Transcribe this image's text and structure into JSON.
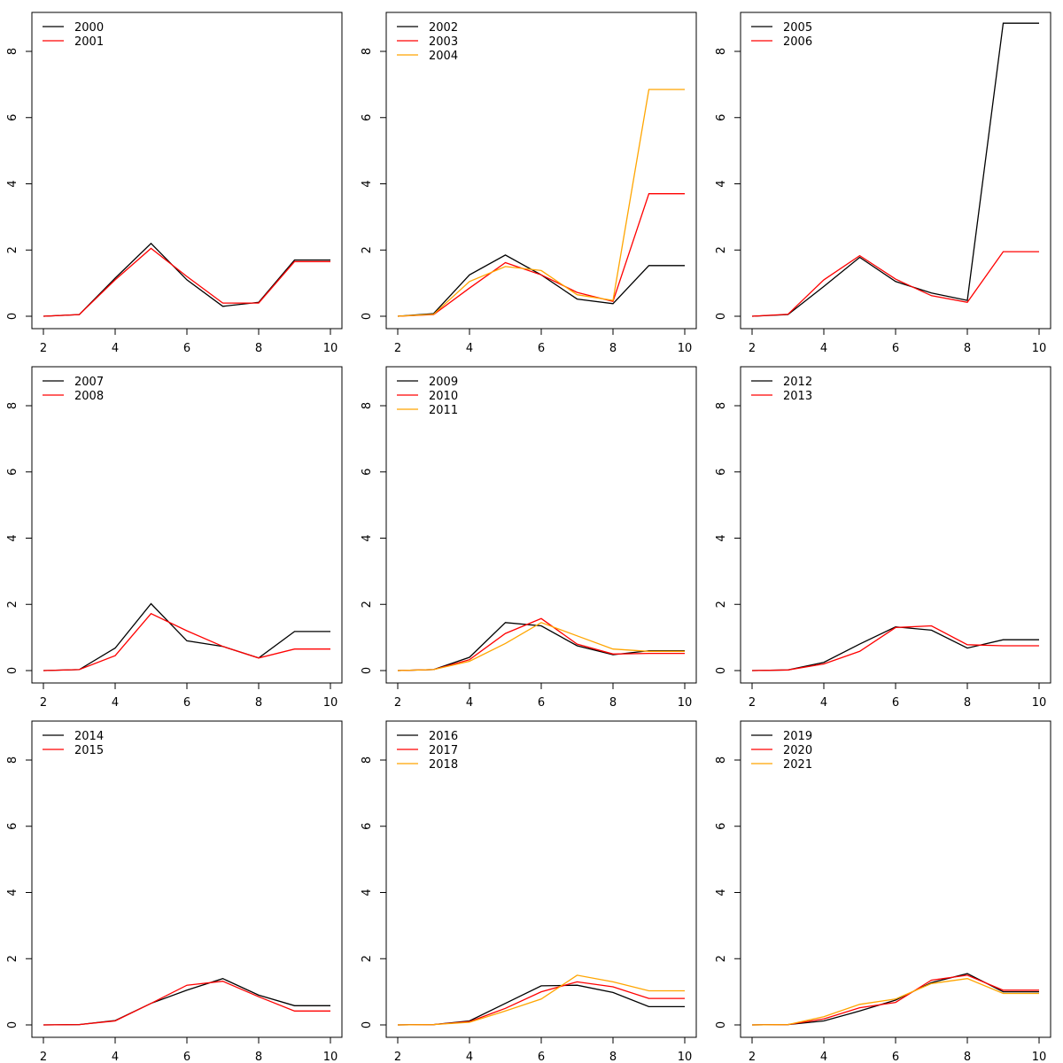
{
  "chart_data": [
    {
      "type": "line",
      "x": [
        2,
        3,
        4,
        5,
        6,
        7,
        8,
        9,
        10
      ],
      "xlim": [
        2,
        10
      ],
      "ylim": [
        0,
        8
      ],
      "xticks": [
        2,
        4,
        6,
        8,
        10
      ],
      "yticks": [
        0,
        2,
        4,
        6,
        8
      ],
      "grid": false,
      "legend_position": "top-left",
      "series": [
        {
          "name": "2000",
          "color": "#000000",
          "values": [
            0,
            0.05,
            1.15,
            2.2,
            1.1,
            0.3,
            0.42,
            1.7,
            1.7
          ]
        },
        {
          "name": "2001",
          "color": "#ff0000",
          "values": [
            0,
            0.05,
            1.1,
            2.05,
            1.2,
            0.4,
            0.4,
            1.65,
            1.65
          ]
        }
      ]
    },
    {
      "type": "line",
      "x": [
        2,
        3,
        4,
        5,
        6,
        7,
        8,
        9,
        10
      ],
      "xlim": [
        2,
        10
      ],
      "ylim": [
        0,
        8
      ],
      "xticks": [
        2,
        4,
        6,
        8,
        10
      ],
      "yticks": [
        0,
        2,
        4,
        6,
        8
      ],
      "grid": false,
      "legend_position": "top-left",
      "series": [
        {
          "name": "2002",
          "color": "#000000",
          "values": [
            0,
            0.08,
            1.25,
            1.85,
            1.25,
            0.52,
            0.38,
            1.53,
            1.53
          ]
        },
        {
          "name": "2003",
          "color": "#ff0000",
          "values": [
            0,
            0.05,
            0.85,
            1.62,
            1.25,
            0.72,
            0.45,
            3.7,
            3.7
          ]
        },
        {
          "name": "2004",
          "color": "#ffa500",
          "values": [
            0,
            0.06,
            1.05,
            1.5,
            1.38,
            0.65,
            0.48,
            6.85,
            6.85
          ]
        }
      ]
    },
    {
      "type": "line",
      "x": [
        2,
        3,
        4,
        5,
        6,
        7,
        8,
        9,
        10
      ],
      "xlim": [
        2,
        10
      ],
      "ylim": [
        0,
        8
      ],
      "xticks": [
        2,
        4,
        6,
        8,
        10
      ],
      "yticks": [
        0,
        2,
        4,
        6,
        8
      ],
      "grid": false,
      "legend_position": "top-left",
      "series": [
        {
          "name": "2005",
          "color": "#000000",
          "values": [
            0,
            0.05,
            0.9,
            1.78,
            1.05,
            0.7,
            0.48,
            8.85,
            8.85
          ]
        },
        {
          "name": "2006",
          "color": "#ff0000",
          "values": [
            0,
            0.06,
            1.1,
            1.83,
            1.12,
            0.62,
            0.42,
            1.95,
            1.95
          ]
        }
      ]
    },
    {
      "type": "line",
      "x": [
        2,
        3,
        4,
        5,
        6,
        7,
        8,
        9,
        10
      ],
      "xlim": [
        2,
        10
      ],
      "ylim": [
        0,
        8
      ],
      "xticks": [
        2,
        4,
        6,
        8,
        10
      ],
      "yticks": [
        0,
        2,
        4,
        6,
        8
      ],
      "grid": false,
      "legend_position": "top-left",
      "series": [
        {
          "name": "2007",
          "color": "#000000",
          "values": [
            0,
            0.03,
            0.68,
            2.02,
            0.9,
            0.73,
            0.38,
            1.18,
            1.18
          ]
        },
        {
          "name": "2008",
          "color": "#ff0000",
          "values": [
            0,
            0.03,
            0.45,
            1.72,
            1.2,
            0.73,
            0.38,
            0.65,
            0.65
          ]
        }
      ]
    },
    {
      "type": "line",
      "x": [
        2,
        3,
        4,
        5,
        6,
        7,
        8,
        9,
        10
      ],
      "xlim": [
        2,
        10
      ],
      "ylim": [
        0,
        8
      ],
      "xticks": [
        2,
        4,
        6,
        8,
        10
      ],
      "yticks": [
        0,
        2,
        4,
        6,
        8
      ],
      "grid": false,
      "legend_position": "top-left",
      "series": [
        {
          "name": "2009",
          "color": "#000000",
          "values": [
            0,
            0.03,
            0.4,
            1.45,
            1.35,
            0.75,
            0.48,
            0.6,
            0.6
          ]
        },
        {
          "name": "2010",
          "color": "#ff0000",
          "values": [
            0,
            0.03,
            0.33,
            1.12,
            1.57,
            0.8,
            0.5,
            0.52,
            0.52
          ]
        },
        {
          "name": "2011",
          "color": "#ffa500",
          "values": [
            0,
            0.03,
            0.28,
            0.82,
            1.45,
            1.05,
            0.65,
            0.58,
            0.58
          ]
        }
      ]
    },
    {
      "type": "line",
      "x": [
        2,
        3,
        4,
        5,
        6,
        7,
        8,
        9,
        10
      ],
      "xlim": [
        2,
        10
      ],
      "ylim": [
        0,
        8
      ],
      "xticks": [
        2,
        4,
        6,
        8,
        10
      ],
      "yticks": [
        0,
        2,
        4,
        6,
        8
      ],
      "grid": false,
      "legend_position": "top-left",
      "series": [
        {
          "name": "2012",
          "color": "#000000",
          "values": [
            0,
            0.02,
            0.25,
            0.8,
            1.32,
            1.22,
            0.68,
            0.93,
            0.93
          ]
        },
        {
          "name": "2013",
          "color": "#ff0000",
          "values": [
            0,
            0.02,
            0.2,
            0.58,
            1.3,
            1.35,
            0.78,
            0.75,
            0.75
          ]
        }
      ]
    },
    {
      "type": "line",
      "x": [
        2,
        3,
        4,
        5,
        6,
        7,
        8,
        9,
        10
      ],
      "xlim": [
        2,
        10
      ],
      "ylim": [
        0,
        8
      ],
      "xticks": [
        2,
        4,
        6,
        8,
        10
      ],
      "yticks": [
        0,
        2,
        4,
        6,
        8
      ],
      "grid": false,
      "legend_position": "top-left",
      "series": [
        {
          "name": "2014",
          "color": "#000000",
          "values": [
            0,
            0.01,
            0.13,
            0.65,
            1.05,
            1.4,
            0.9,
            0.58,
            0.58
          ]
        },
        {
          "name": "2015",
          "color": "#ff0000",
          "values": [
            0,
            0.01,
            0.12,
            0.65,
            1.2,
            1.32,
            0.85,
            0.42,
            0.42
          ]
        }
      ]
    },
    {
      "type": "line",
      "x": [
        2,
        3,
        4,
        5,
        6,
        7,
        8,
        9,
        10
      ],
      "xlim": [
        2,
        10
      ],
      "ylim": [
        0,
        8
      ],
      "xticks": [
        2,
        4,
        6,
        8,
        10
      ],
      "yticks": [
        0,
        2,
        4,
        6,
        8
      ],
      "grid": false,
      "legend_position": "top-left",
      "series": [
        {
          "name": "2016",
          "color": "#000000",
          "values": [
            0,
            0.01,
            0.12,
            0.65,
            1.18,
            1.2,
            0.98,
            0.55,
            0.55
          ]
        },
        {
          "name": "2017",
          "color": "#ff0000",
          "values": [
            0,
            0.01,
            0.1,
            0.5,
            1.0,
            1.3,
            1.15,
            0.8,
            0.8
          ]
        },
        {
          "name": "2018",
          "color": "#ffa500",
          "values": [
            0,
            0.01,
            0.08,
            0.42,
            0.78,
            1.5,
            1.3,
            1.03,
            1.03
          ]
        }
      ]
    },
    {
      "type": "line",
      "x": [
        2,
        3,
        4,
        5,
        6,
        7,
        8,
        9,
        10
      ],
      "xlim": [
        2,
        10
      ],
      "ylim": [
        0,
        8
      ],
      "xticks": [
        2,
        4,
        6,
        8,
        10
      ],
      "yticks": [
        0,
        2,
        4,
        6,
        8
      ],
      "grid": false,
      "legend_position": "top-left",
      "series": [
        {
          "name": "2019",
          "color": "#000000",
          "values": [
            0,
            0.01,
            0.12,
            0.42,
            0.75,
            1.28,
            1.55,
            1.0,
            1.0
          ]
        },
        {
          "name": "2020",
          "color": "#ff0000",
          "values": [
            0,
            0.01,
            0.18,
            0.52,
            0.68,
            1.35,
            1.5,
            1.05,
            1.05
          ]
        },
        {
          "name": "2021",
          "color": "#ffa500",
          "values": [
            0,
            0.01,
            0.25,
            0.62,
            0.78,
            1.25,
            1.4,
            0.95,
            0.95
          ]
        }
      ]
    }
  ]
}
